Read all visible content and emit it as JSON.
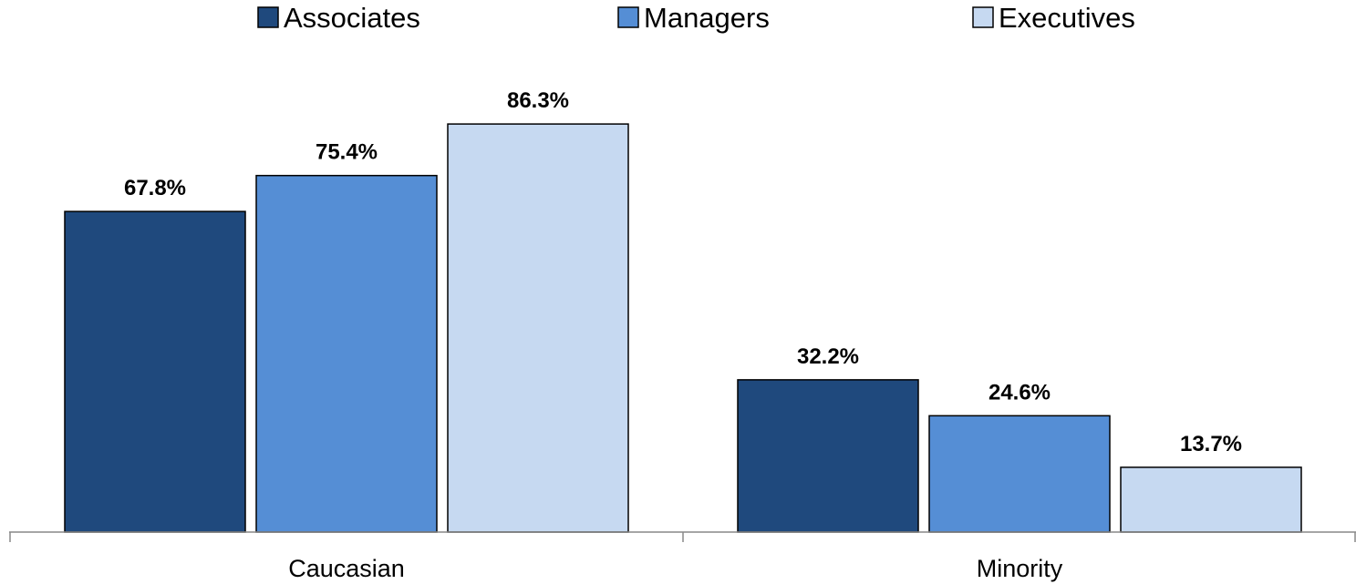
{
  "chart_data": {
    "type": "bar",
    "categories": [
      "Caucasian",
      "Minority"
    ],
    "series": [
      {
        "name": "Associates",
        "values": [
          67.8,
          32.2
        ],
        "labels": [
          "67.8%",
          "32.2%"
        ],
        "color": "#1F497D"
      },
      {
        "name": "Managers",
        "values": [
          75.4,
          24.6
        ],
        "labels": [
          "75.4%",
          "24.6%"
        ],
        "color": "#558ED5"
      },
      {
        "name": "Executives",
        "values": [
          86.3,
          13.7
        ],
        "labels": [
          "86.3%",
          "13.7%"
        ],
        "color": "#C6D9F1"
      }
    ],
    "ylim": [
      0,
      100
    ],
    "grid": false,
    "legend_position": "top",
    "data_labels": true
  }
}
